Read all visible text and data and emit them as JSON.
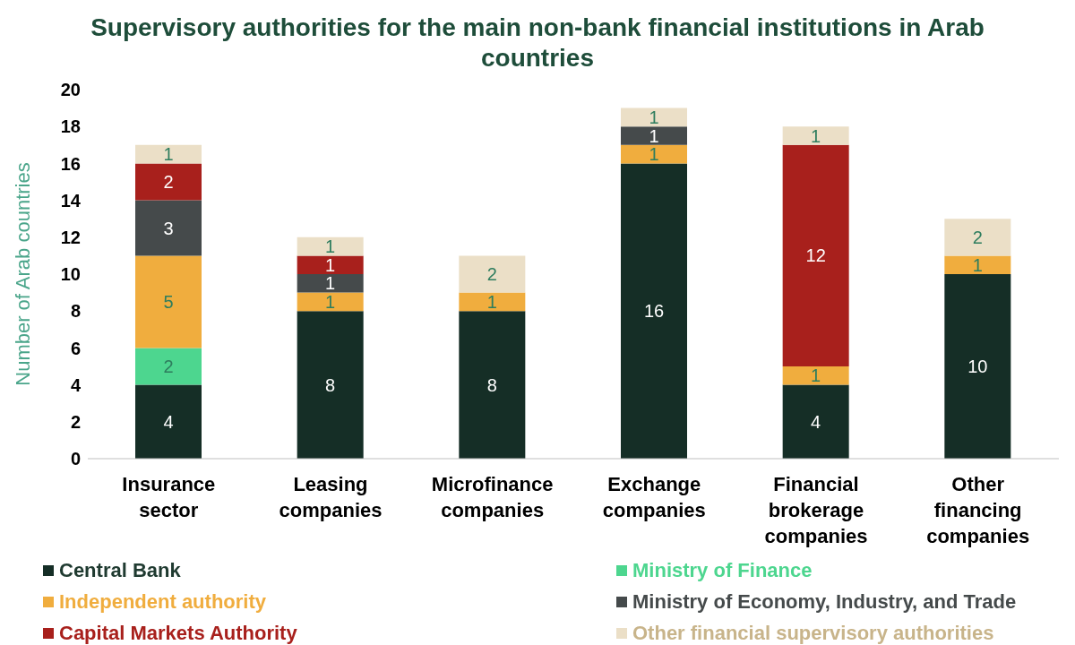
{
  "chart_data": {
    "type": "bar",
    "title": "Supervisory authorities for the main non-bank financial institutions in Arab countries",
    "ylabel": "Number of Arab countries",
    "categories": [
      "Insurance sector",
      "Leasing companies",
      "Microfinance companies",
      "Exchange companies",
      "Financial brokerage companies",
      "Other financing companies"
    ],
    "stacked": true,
    "ylim": [
      0,
      20
    ],
    "yticks": [
      0,
      2,
      4,
      6,
      8,
      10,
      12,
      14,
      16,
      18,
      20
    ],
    "grid": false,
    "legend": "bottom",
    "data_labels": true,
    "series": [
      {
        "name": "Central Bank",
        "color": "#152e26",
        "values": [
          4,
          8,
          8,
          16,
          4,
          10
        ]
      },
      {
        "name": "Ministry of Finance",
        "color": "#4dd68f",
        "values": [
          2,
          null,
          null,
          null,
          null,
          null
        ]
      },
      {
        "name": "Independent authority",
        "color": "#f0ad3e",
        "values": [
          5,
          1,
          1,
          1,
          1,
          1
        ]
      },
      {
        "name": "Ministry of Economy, Industry, and Trade",
        "color": "#454a4b",
        "values": [
          3,
          1,
          null,
          1,
          null,
          null
        ]
      },
      {
        "name": "Capital Markets Authority",
        "color": "#a8201c",
        "values": [
          2,
          1,
          null,
          null,
          12,
          null
        ]
      },
      {
        "name": "Other financial supervisory authorities",
        "color": "#ebdfc7",
        "values": [
          1,
          1,
          2,
          1,
          1,
          2
        ]
      }
    ]
  }
}
